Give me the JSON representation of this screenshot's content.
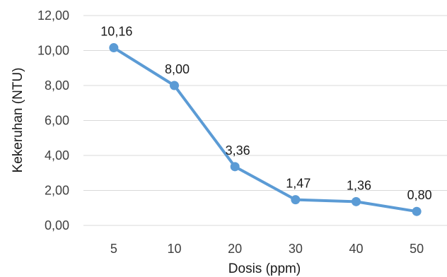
{
  "chart_data": {
    "type": "line",
    "x": [
      "5",
      "10",
      "20",
      "30",
      "40",
      "50"
    ],
    "series": [
      {
        "values": [
          10.16,
          8.0,
          3.36,
          1.47,
          1.36,
          0.8
        ],
        "value_labels": [
          "10,16",
          "8,00",
          "3,36",
          "1,47",
          "1,36",
          "0,80"
        ],
        "color": "#5B9BD5"
      }
    ],
    "xlabel": "Dosis (ppm)",
    "ylabel": "Kekeruhan (NTU)",
    "ylim": [
      0,
      12
    ],
    "yticks": [
      0,
      2,
      4,
      6,
      8,
      10,
      12
    ],
    "ytick_labels": [
      "0,00",
      "2,00",
      "4,00",
      "6,00",
      "8,00",
      "10,00",
      "12,00"
    ],
    "grid": true,
    "gridline_color": "#d9d9d9",
    "legend": "none"
  }
}
